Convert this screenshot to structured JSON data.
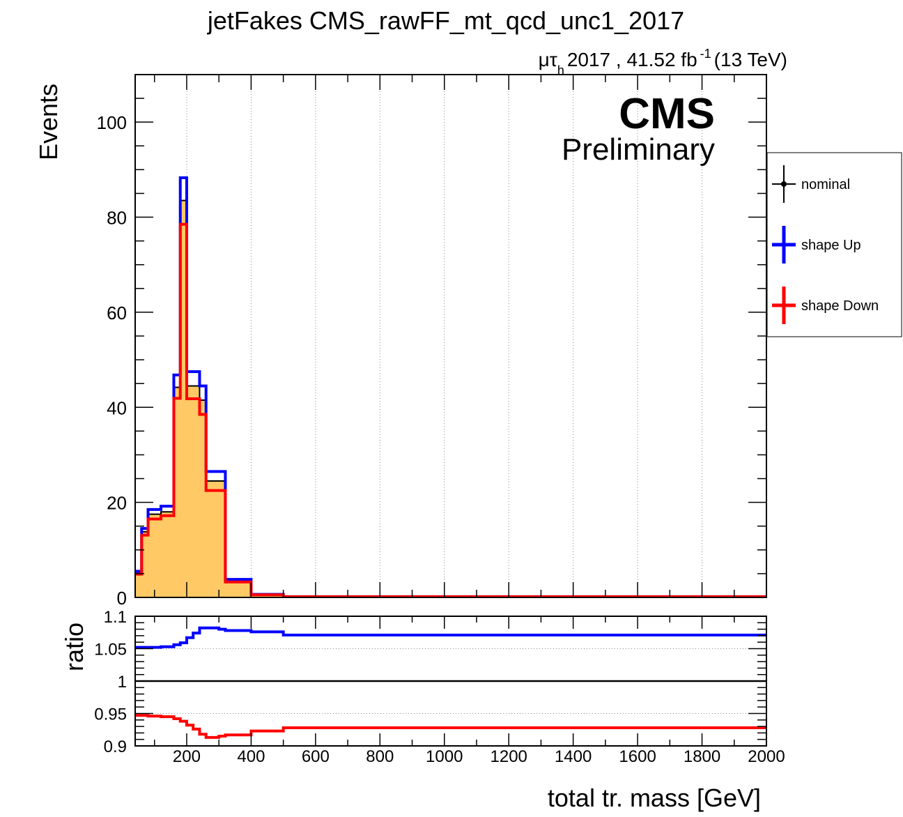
{
  "chart_data": {
    "type": "histogram",
    "title": "jetFakes CMS_rawFF_mt_qcd_unc1_2017",
    "lumi": {
      "channel_mu": "μ",
      "channel_tau": "τ",
      "channel_sub": "h",
      "text": "2017 , 41.52 fb",
      "sup": "-1",
      "energy": "(13 TeV)"
    },
    "cms_label": "CMS",
    "cms_sublabel": "Preliminary",
    "ylabel": "Events",
    "xlabel": "total tr. mass [GeV]",
    "ratio_ylabel": "ratio",
    "xlim": [
      40,
      2000
    ],
    "ylim": [
      0,
      110
    ],
    "ratio_ylim": [
      0.9,
      1.1
    ],
    "grid": true,
    "legend_position": "right",
    "x_ticks": [
      200,
      400,
      600,
      800,
      1000,
      1200,
      1400,
      1600,
      1800,
      2000
    ],
    "y_ticks": [
      0,
      20,
      40,
      60,
      80,
      100
    ],
    "ratio_ticks": [
      {
        "value": 0.9,
        "label": "0.9"
      },
      {
        "value": 0.95,
        "label": "0.95"
      },
      {
        "value": 1.0,
        "label": "1"
      },
      {
        "value": 1.05,
        "label": "1.05"
      },
      {
        "value": 1.1,
        "label": "1.1"
      }
    ],
    "bin_edges": [
      40,
      60,
      80,
      120,
      160,
      180,
      200,
      220,
      240,
      260,
      300,
      320,
      400,
      500,
      2000
    ],
    "series": [
      {
        "name": "nominal",
        "color": "#000000",
        "fill": "#ffc966",
        "values": [
          5.2,
          13.8,
          17.5,
          18.0,
          44.2,
          83.5,
          44.5,
          44.5,
          41.5,
          24.5,
          24.5,
          3.5,
          0.6,
          0.15
        ]
      },
      {
        "name": "shape Up",
        "color": "#0000ff",
        "values": [
          5.5,
          14.5,
          18.5,
          19.2,
          46.8,
          88.3,
          47.5,
          47.5,
          44.5,
          26.5,
          26.5,
          3.8,
          0.65,
          0.16
        ]
      },
      {
        "name": "shape Down",
        "color": "#ff0000",
        "values": [
          4.9,
          13.1,
          16.5,
          17.2,
          41.9,
          78.5,
          41.8,
          41.8,
          38.5,
          22.5,
          22.5,
          3.25,
          0.55,
          0.14
        ]
      }
    ],
    "ratio_series": [
      {
        "name": "shape Up",
        "color": "#0000ff",
        "values": [
          1.052,
          1.052,
          1.052,
          1.053,
          1.056,
          1.059,
          1.067,
          1.074,
          1.082,
          1.082,
          1.08,
          1.078,
          1.076,
          1.071
        ]
      },
      {
        "name": "shape Down",
        "color": "#ff0000",
        "values": [
          0.947,
          0.947,
          0.946,
          0.945,
          0.942,
          0.938,
          0.932,
          0.926,
          0.918,
          0.913,
          0.915,
          0.917,
          0.923,
          0.928
        ]
      }
    ]
  }
}
